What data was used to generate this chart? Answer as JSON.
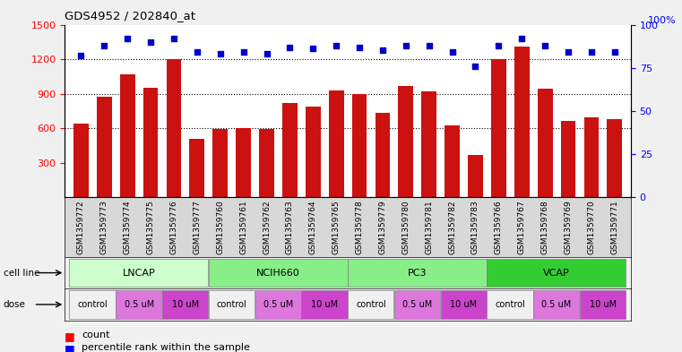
{
  "title": "GDS4952 / 202840_at",
  "samples": [
    "GSM1359772",
    "GSM1359773",
    "GSM1359774",
    "GSM1359775",
    "GSM1359776",
    "GSM1359777",
    "GSM1359760",
    "GSM1359761",
    "GSM1359762",
    "GSM1359763",
    "GSM1359764",
    "GSM1359765",
    "GSM1359778",
    "GSM1359779",
    "GSM1359780",
    "GSM1359781",
    "GSM1359782",
    "GSM1359783",
    "GSM1359766",
    "GSM1359767",
    "GSM1359768",
    "GSM1359769",
    "GSM1359770",
    "GSM1359771"
  ],
  "counts": [
    640,
    870,
    1070,
    950,
    1200,
    510,
    590,
    600,
    590,
    820,
    790,
    930,
    900,
    730,
    970,
    920,
    620,
    370,
    1200,
    1310,
    940,
    660,
    690,
    680
  ],
  "percentiles": [
    82,
    88,
    92,
    90,
    92,
    84,
    83,
    84,
    83,
    87,
    86,
    88,
    87,
    85,
    88,
    88,
    84,
    76,
    88,
    92,
    88,
    84,
    84,
    84
  ],
  "cell_lines": [
    {
      "name": "LNCAP",
      "start": 0,
      "end": 6,
      "color": "#ccffcc"
    },
    {
      "name": "NCIH660",
      "start": 6,
      "end": 12,
      "color": "#88ee88"
    },
    {
      "name": "PC3",
      "start": 12,
      "end": 18,
      "color": "#88ee88"
    },
    {
      "name": "VCAP",
      "start": 18,
      "end": 24,
      "color": "#33cc33"
    }
  ],
  "doses": [
    {
      "label": "control",
      "start": 0,
      "end": 2,
      "color": "#f0f0f0"
    },
    {
      "label": "0.5 uM",
      "start": 2,
      "end": 4,
      "color": "#dd77dd"
    },
    {
      "label": "10 uM",
      "start": 4,
      "end": 6,
      "color": "#cc44cc"
    },
    {
      "label": "control",
      "start": 6,
      "end": 8,
      "color": "#f0f0f0"
    },
    {
      "label": "0.5 uM",
      "start": 8,
      "end": 10,
      "color": "#dd77dd"
    },
    {
      "label": "10 uM",
      "start": 10,
      "end": 12,
      "color": "#cc44cc"
    },
    {
      "label": "control",
      "start": 12,
      "end": 14,
      "color": "#f0f0f0"
    },
    {
      "label": "0.5 uM",
      "start": 14,
      "end": 16,
      "color": "#dd77dd"
    },
    {
      "label": "10 uM",
      "start": 16,
      "end": 18,
      "color": "#cc44cc"
    },
    {
      "label": "control",
      "start": 18,
      "end": 20,
      "color": "#f0f0f0"
    },
    {
      "label": "0.5 uM",
      "start": 20,
      "end": 22,
      "color": "#dd77dd"
    },
    {
      "label": "10 uM",
      "start": 22,
      "end": 24,
      "color": "#cc44cc"
    }
  ],
  "bar_color": "#cc1111",
  "dot_color": "#0000cc",
  "ylim_left": [
    0,
    1500
  ],
  "ylim_right": [
    0,
    100
  ],
  "yticks_left": [
    300,
    600,
    900,
    1200,
    1500
  ],
  "yticks_right": [
    0,
    25,
    50,
    75,
    100
  ],
  "grid_values": [
    600,
    900,
    1200
  ],
  "bg_color": "#f0f0f0",
  "plot_bg": "#ffffff",
  "xticklabel_bg": "#d8d8d8"
}
